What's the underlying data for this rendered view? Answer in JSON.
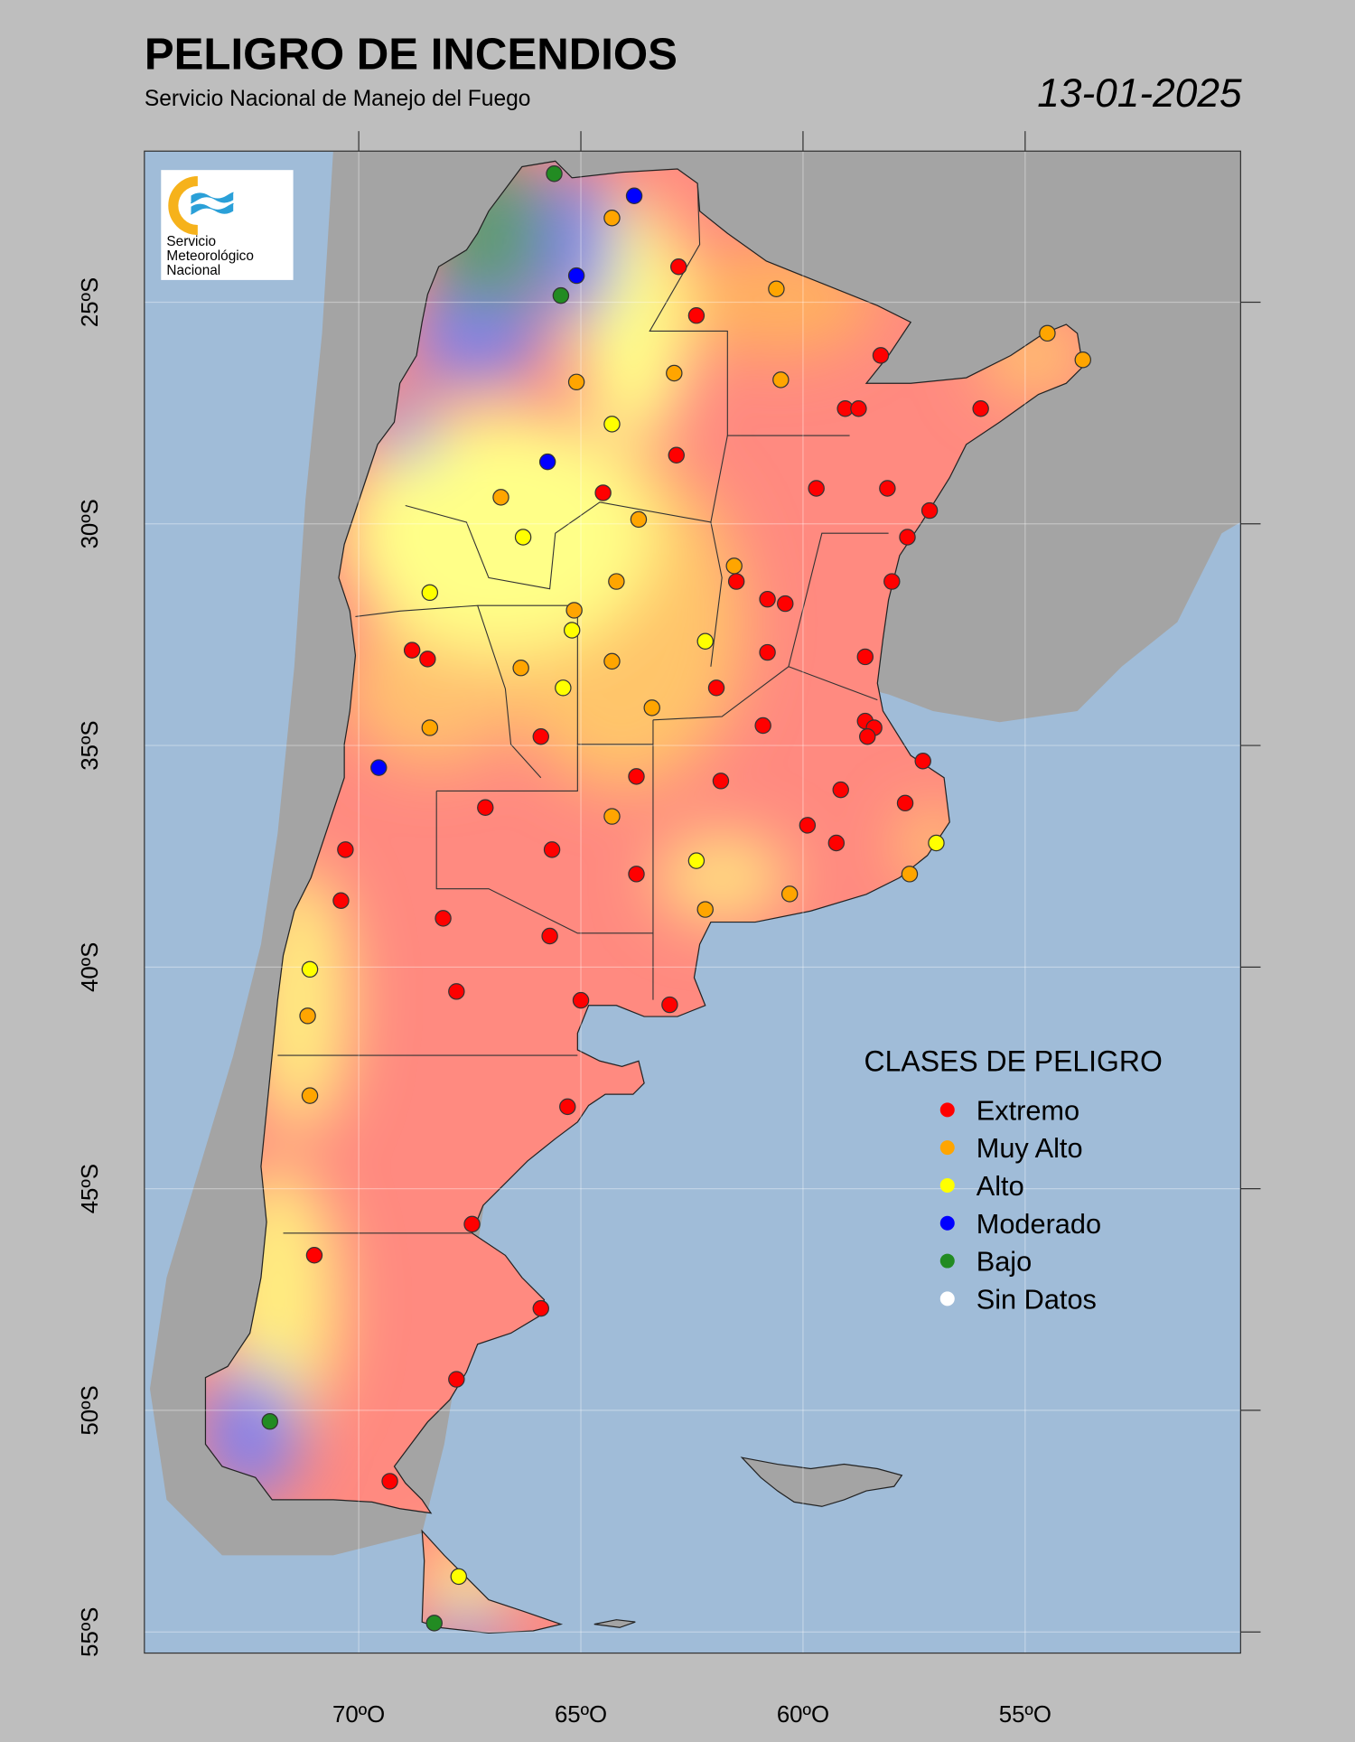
{
  "header": {
    "title": "PELIGRO DE INCENDIOS",
    "subtitle": "Servicio Nacional de Manejo del Fuego",
    "date": "13-01-2025"
  },
  "logo": {
    "text_lines": [
      "Servicio",
      "Meteorológico",
      "Nacional"
    ]
  },
  "axes": {
    "lat_labels": [
      {
        "lat": -25,
        "label": "25ºS"
      },
      {
        "lat": -30,
        "label": "30ºS"
      },
      {
        "lat": -35,
        "label": "35ºS"
      },
      {
        "lat": -40,
        "label": "40ºS"
      },
      {
        "lat": -45,
        "label": "45ºS"
      },
      {
        "lat": -50,
        "label": "50ºS"
      },
      {
        "lat": -55,
        "label": "55ºS"
      }
    ],
    "lon_labels": [
      {
        "lon": -70,
        "label": "70ºO"
      },
      {
        "lon": -65,
        "label": "65ºO"
      },
      {
        "lon": -60,
        "label": "60ºO"
      },
      {
        "lon": -55,
        "label": "55ºO"
      }
    ]
  },
  "legend": {
    "title": "CLASES DE PELIGRO",
    "items": [
      {
        "key": "E",
        "label": "Extremo",
        "color": "#ff0000"
      },
      {
        "key": "M",
        "label": "Muy Alto",
        "color": "#ffa500"
      },
      {
        "key": "A",
        "label": "Alto",
        "color": "#ffff00"
      },
      {
        "key": "Mo",
        "label": "Moderado",
        "color": "#0000ff"
      },
      {
        "key": "B",
        "label": "Bajo",
        "color": "#228b22"
      },
      {
        "key": "SD",
        "label": "Sin Datos",
        "color": "#ffffff"
      }
    ]
  },
  "colors": {
    "ocean": "#a0bcd8",
    "land": "#a4a4a4",
    "background": "#bebebe"
  },
  "stations": [
    {
      "lon": -65.6,
      "lat": -22.1,
      "c": "B"
    },
    {
      "lon": -63.8,
      "lat": -22.6,
      "c": "Mo"
    },
    {
      "lon": -64.3,
      "lat": -23.1,
      "c": "M"
    },
    {
      "lon": -62.8,
      "lat": -24.2,
      "c": "E"
    },
    {
      "lon": -65.1,
      "lat": -24.4,
      "c": "Mo"
    },
    {
      "lon": -65.45,
      "lat": -24.85,
      "c": "B"
    },
    {
      "lon": -60.6,
      "lat": -24.7,
      "c": "M"
    },
    {
      "lon": -62.4,
      "lat": -25.3,
      "c": "E"
    },
    {
      "lon": -54.5,
      "lat": -25.7,
      "c": "M"
    },
    {
      "lon": -53.7,
      "lat": -26.3,
      "c": "M"
    },
    {
      "lon": -58.25,
      "lat": -26.2,
      "c": "E"
    },
    {
      "lon": -62.9,
      "lat": -26.6,
      "c": "M"
    },
    {
      "lon": -65.1,
      "lat": -26.8,
      "c": "M"
    },
    {
      "lon": -60.5,
      "lat": -26.75,
      "c": "M"
    },
    {
      "lon": -59.05,
      "lat": -27.4,
      "c": "E"
    },
    {
      "lon": -58.75,
      "lat": -27.4,
      "c": "E"
    },
    {
      "lon": -56.0,
      "lat": -27.4,
      "c": "E"
    },
    {
      "lon": -64.3,
      "lat": -27.75,
      "c": "A"
    },
    {
      "lon": -62.85,
      "lat": -28.45,
      "c": "E"
    },
    {
      "lon": -65.75,
      "lat": -28.6,
      "c": "Mo"
    },
    {
      "lon": -64.5,
      "lat": -29.3,
      "c": "E"
    },
    {
      "lon": -66.8,
      "lat": -29.4,
      "c": "M"
    },
    {
      "lon": -59.7,
      "lat": -29.2,
      "c": "E"
    },
    {
      "lon": -58.1,
      "lat": -29.2,
      "c": "E"
    },
    {
      "lon": -57.15,
      "lat": -29.7,
      "c": "E"
    },
    {
      "lon": -63.7,
      "lat": -29.9,
      "c": "M"
    },
    {
      "lon": -66.3,
      "lat": -30.3,
      "c": "A"
    },
    {
      "lon": -57.65,
      "lat": -30.3,
      "c": "E"
    },
    {
      "lon": -61.55,
      "lat": -30.95,
      "c": "M"
    },
    {
      "lon": -61.5,
      "lat": -31.3,
      "c": "E"
    },
    {
      "lon": -64.2,
      "lat": -31.3,
      "c": "M"
    },
    {
      "lon": -58.0,
      "lat": -31.3,
      "c": "E"
    },
    {
      "lon": -68.4,
      "lat": -31.55,
      "c": "A"
    },
    {
      "lon": -60.8,
      "lat": -31.7,
      "c": "E"
    },
    {
      "lon": -60.4,
      "lat": -31.8,
      "c": "E"
    },
    {
      "lon": -65.15,
      "lat": -31.95,
      "c": "M"
    },
    {
      "lon": -65.2,
      "lat": -32.4,
      "c": "A"
    },
    {
      "lon": -62.2,
      "lat": -32.65,
      "c": "A"
    },
    {
      "lon": -68.8,
      "lat": -32.85,
      "c": "E"
    },
    {
      "lon": -68.45,
      "lat": -33.05,
      "c": "E"
    },
    {
      "lon": -60.8,
      "lat": -32.9,
      "c": "E"
    },
    {
      "lon": -64.3,
      "lat": -33.1,
      "c": "M"
    },
    {
      "lon": -66.35,
      "lat": -33.25,
      "c": "M"
    },
    {
      "lon": -58.6,
      "lat": -33.0,
      "c": "E"
    },
    {
      "lon": -65.4,
      "lat": -33.7,
      "c": "A"
    },
    {
      "lon": -61.95,
      "lat": -33.7,
      "c": "E"
    },
    {
      "lon": -63.4,
      "lat": -34.15,
      "c": "M"
    },
    {
      "lon": -68.4,
      "lat": -34.6,
      "c": "M"
    },
    {
      "lon": -58.6,
      "lat": -34.45,
      "c": "E"
    },
    {
      "lon": -58.4,
      "lat": -34.6,
      "c": "E"
    },
    {
      "lon": -60.9,
      "lat": -34.55,
      "c": "E"
    },
    {
      "lon": -65.9,
      "lat": -34.8,
      "c": "E"
    },
    {
      "lon": -58.55,
      "lat": -34.8,
      "c": "E"
    },
    {
      "lon": -69.55,
      "lat": -35.5,
      "c": "Mo"
    },
    {
      "lon": -57.3,
      "lat": -35.35,
      "c": "E"
    },
    {
      "lon": -63.75,
      "lat": -35.7,
      "c": "E"
    },
    {
      "lon": -61.85,
      "lat": -35.8,
      "c": "E"
    },
    {
      "lon": -59.15,
      "lat": -36.0,
      "c": "E"
    },
    {
      "lon": -57.7,
      "lat": -36.3,
      "c": "E"
    },
    {
      "lon": -67.15,
      "lat": -36.4,
      "c": "E"
    },
    {
      "lon": -64.3,
      "lat": -36.6,
      "c": "M"
    },
    {
      "lon": -59.9,
      "lat": -36.8,
      "c": "E"
    },
    {
      "lon": -57.0,
      "lat": -37.2,
      "c": "A"
    },
    {
      "lon": -59.25,
      "lat": -37.2,
      "c": "E"
    },
    {
      "lon": -70.3,
      "lat": -37.35,
      "c": "E"
    },
    {
      "lon": -65.65,
      "lat": -37.35,
      "c": "E"
    },
    {
      "lon": -62.4,
      "lat": -37.6,
      "c": "A"
    },
    {
      "lon": -57.6,
      "lat": -37.9,
      "c": "M"
    },
    {
      "lon": -63.75,
      "lat": -37.9,
      "c": "E"
    },
    {
      "lon": -60.3,
      "lat": -38.35,
      "c": "M"
    },
    {
      "lon": -70.4,
      "lat": -38.5,
      "c": "E"
    },
    {
      "lon": -62.2,
      "lat": -38.7,
      "c": "M"
    },
    {
      "lon": -68.1,
      "lat": -38.9,
      "c": "E"
    },
    {
      "lon": -65.7,
      "lat": -39.3,
      "c": "E"
    },
    {
      "lon": -71.1,
      "lat": -40.05,
      "c": "A"
    },
    {
      "lon": -67.8,
      "lat": -40.55,
      "c": "E"
    },
    {
      "lon": -65.0,
      "lat": -40.75,
      "c": "E"
    },
    {
      "lon": -63.0,
      "lat": -40.85,
      "c": "E"
    },
    {
      "lon": -71.15,
      "lat": -41.1,
      "c": "M"
    },
    {
      "lon": -71.1,
      "lat": -42.9,
      "c": "M"
    },
    {
      "lon": -65.3,
      "lat": -43.15,
      "c": "E"
    },
    {
      "lon": -67.45,
      "lat": -45.8,
      "c": "E"
    },
    {
      "lon": -71.0,
      "lat": -46.5,
      "c": "E"
    },
    {
      "lon": -65.9,
      "lat": -47.7,
      "c": "E"
    },
    {
      "lon": -67.8,
      "lat": -49.3,
      "c": "E"
    },
    {
      "lon": -72.0,
      "lat": -50.25,
      "c": "B"
    },
    {
      "lon": -69.3,
      "lat": -51.6,
      "c": "E"
    },
    {
      "lon": -67.75,
      "lat": -53.75,
      "c": "A"
    },
    {
      "lon": -68.3,
      "lat": -54.8,
      "c": "B"
    }
  ]
}
